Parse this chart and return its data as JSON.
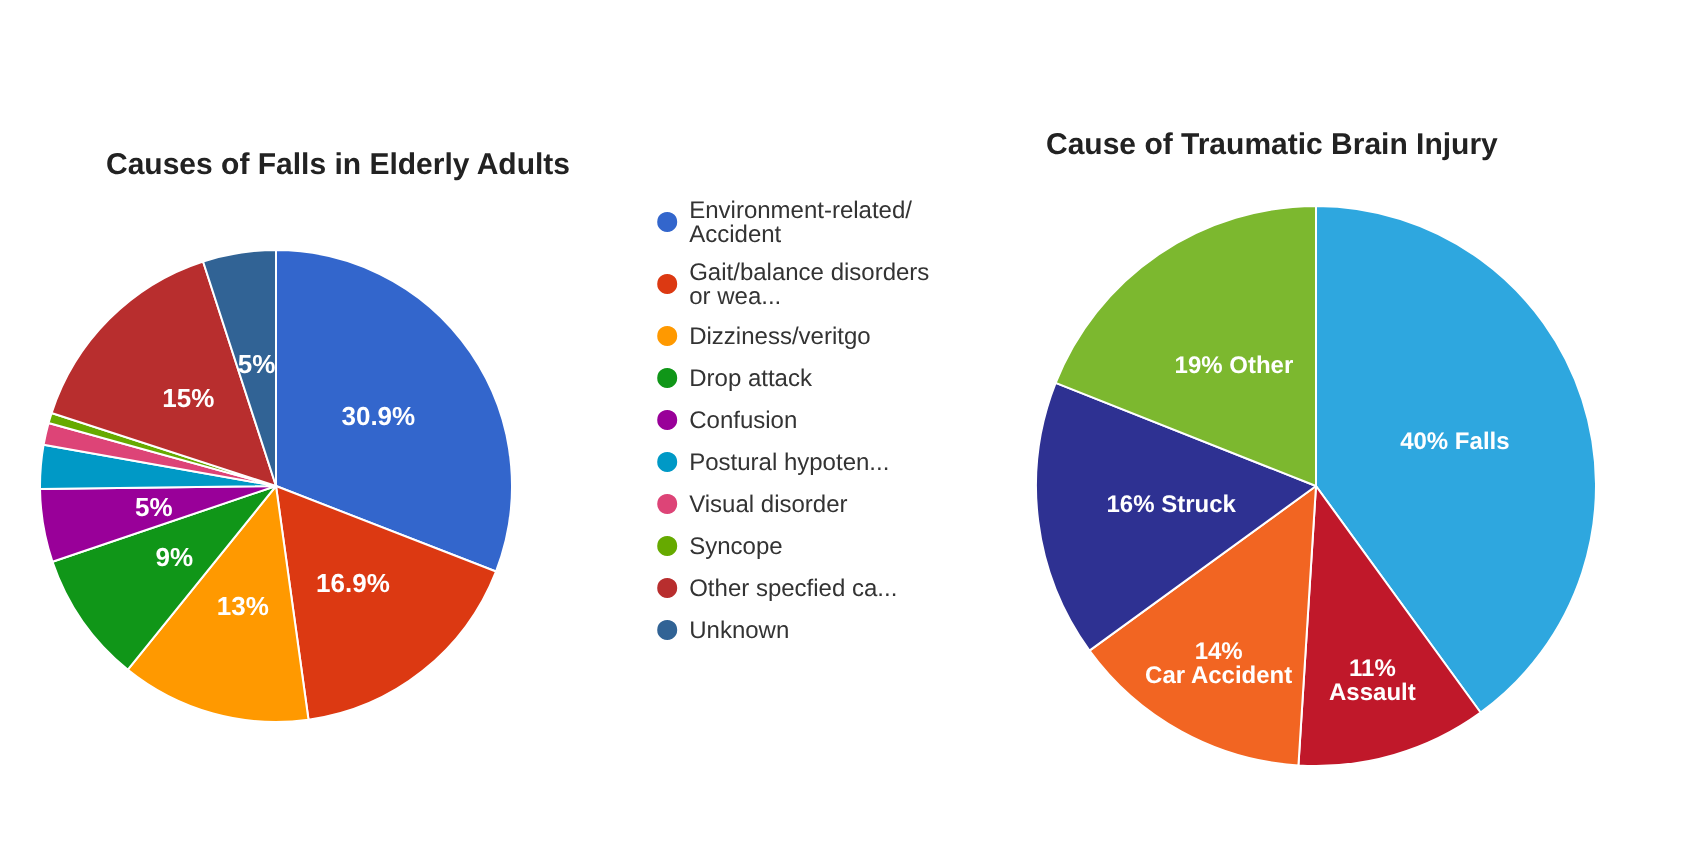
{
  "chart_data": [
    {
      "type": "pie",
      "title": "Causes of Falls in Elderly Adults",
      "categories": [
        "Environment-related/Accident",
        "Gait/balance disorders or wea...",
        "Dizziness/veritgo",
        "Drop attack",
        "Confusion",
        "Postural hypoten...",
        "Visual disorder",
        "Syncope",
        "Other specfied ca...",
        "Unknown"
      ],
      "values": [
        30.9,
        16.9,
        13,
        9,
        5,
        3,
        1.5,
        0.7,
        15,
        5
      ],
      "value_labels": [
        "30.9%",
        "16.9%",
        "13%",
        "9%",
        "5%",
        null,
        null,
        null,
        "15%",
        "5%"
      ],
      "colors": [
        "#3366cc",
        "#dc3912",
        "#ff9900",
        "#109618",
        "#990099",
        "#0099c6",
        "#dd4477",
        "#66aa00",
        "#b82e2e",
        "#316395"
      ],
      "legend": "right"
    },
    {
      "type": "pie",
      "title": "Cause of Traumatic Brain Injury",
      "categories": [
        "Falls",
        "Assault",
        "Car Accident",
        "Struck",
        "Other"
      ],
      "values": [
        40,
        11,
        14,
        16,
        19
      ],
      "value_labels": [
        "40%",
        "11%",
        "14%",
        "16%",
        "19%"
      ],
      "colors": [
        "#2ea7df",
        "#c0182a",
        "#f26522",
        "#2e3192",
        "#7cb82f"
      ]
    }
  ]
}
